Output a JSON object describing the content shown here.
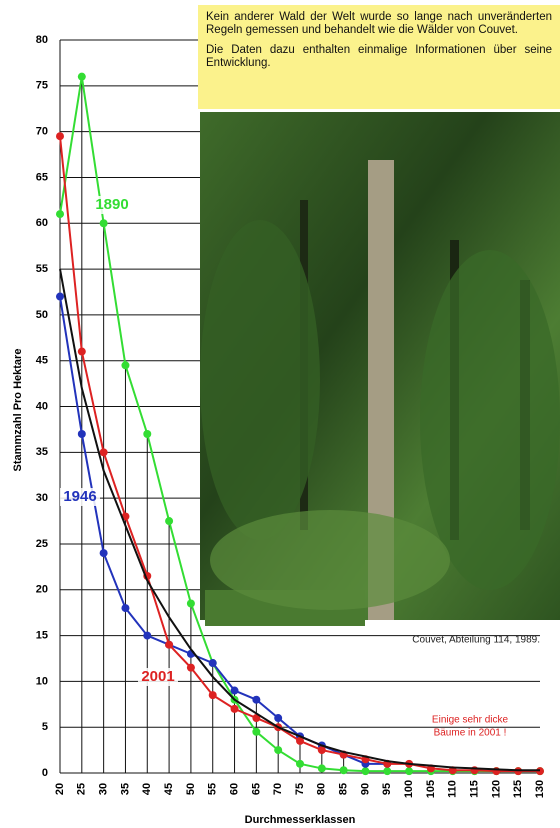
{
  "chart_data": {
    "type": "line",
    "y_label": "Stammzahl Pro Hektare",
    "x_label": "Durchmesserklassen",
    "note": [
      "Kein anderer Wald der Welt wurde so lange nach unveränderten Regeln gemessen und behandelt wie die Wälder von Couvet.",
      "Die Daten dazu enthalten einmalige Informationen über seine Entwicklung."
    ],
    "caption": "Couvet, Abteilung 114, 1989.",
    "annotation": [
      "Einige sehr dicke",
      "Bäume in 2001 !"
    ],
    "x": [
      20,
      25,
      30,
      35,
      40,
      45,
      50,
      55,
      60,
      65,
      70,
      75,
      80,
      85,
      90,
      95,
      100,
      105,
      110,
      115,
      120,
      125,
      130
    ],
    "xlim": [
      20,
      130
    ],
    "xticks": [
      20,
      25,
      30,
      35,
      40,
      45,
      50,
      55,
      60,
      65,
      70,
      75,
      80,
      85,
      90,
      95,
      100,
      105,
      110,
      115,
      120,
      125,
      130
    ],
    "ylim": [
      0,
      80
    ],
    "yticks": [
      0,
      5,
      10,
      15,
      20,
      25,
      30,
      35,
      40,
      45,
      50,
      55,
      60,
      65,
      70,
      75,
      80
    ],
    "grid": true,
    "series": [
      {
        "name": "1890",
        "color": "#33dd33",
        "values": [
          61,
          76,
          60,
          44.5,
          37,
          27.5,
          18.5,
          12,
          8,
          4.5,
          2.5,
          1,
          0.5,
          0.3,
          0.2,
          0.2,
          0.2,
          0.2,
          0.2,
          0.2,
          0.2,
          0.2,
          0.2
        ]
      },
      {
        "name": "1946",
        "color": "#2233bb",
        "values": [
          52,
          37,
          24,
          18,
          15,
          14,
          13,
          12,
          9,
          8,
          6,
          4,
          3,
          2,
          1,
          1,
          null,
          null,
          null,
          null,
          null,
          null,
          null
        ]
      },
      {
        "name": "2001",
        "color": "#dd2222",
        "values": [
          69.5,
          46,
          35,
          28,
          21.5,
          14,
          11.5,
          8.5,
          7,
          6,
          5,
          3.5,
          2.5,
          2,
          1.5,
          1,
          1,
          0.5,
          0.3,
          0.3,
          0.2,
          0.2,
          0.2
        ]
      },
      {
        "color": "#111111",
        "values": [
          55,
          42,
          33,
          27,
          21,
          17,
          13.5,
          10.5,
          8,
          6.5,
          5,
          4,
          3,
          2.3,
          1.8,
          1.3,
          1,
          0.8,
          0.6,
          0.5,
          0.4,
          0.3,
          0.3
        ]
      }
    ]
  }
}
